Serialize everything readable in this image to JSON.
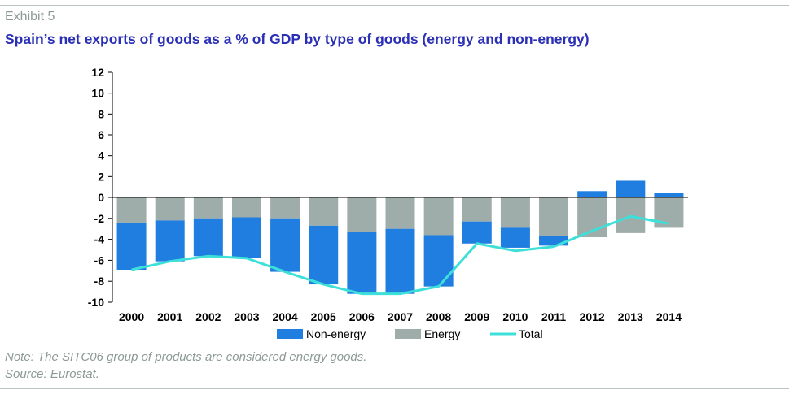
{
  "header": {
    "exhibit": "Exhibit 5",
    "title": "Spain’s net exports of goods as a % of GDP by type of goods (energy and non-energy)"
  },
  "footer": {
    "note": "Note: The SITC06 group of products are considered energy goods.",
    "source": "Source: Eurostat."
  },
  "colors": {
    "non_energy": "#1f7ee0",
    "energy": "#9fadaa",
    "total": "#3de0d8",
    "title": "#2a2fb5",
    "muted": "#8c9a96"
  },
  "chart_data": {
    "type": "bar",
    "stacked": true,
    "categories": [
      "2000",
      "2001",
      "2002",
      "2003",
      "2004",
      "2005",
      "2006",
      "2007",
      "2008",
      "2009",
      "2010",
      "2011",
      "2012",
      "2013",
      "2014"
    ],
    "series": [
      {
        "name": "Non-energy",
        "type": "bar",
        "values": [
          -4.5,
          -3.9,
          -3.6,
          -3.9,
          -5.1,
          -5.6,
          -5.9,
          -6.2,
          -4.9,
          -2.1,
          -1.9,
          -0.9,
          0.6,
          1.6,
          0.4
        ]
      },
      {
        "name": "Energy",
        "type": "bar",
        "values": [
          -2.4,
          -2.2,
          -2.0,
          -1.9,
          -2.0,
          -2.7,
          -3.3,
          -3.0,
          -3.6,
          -2.3,
          -2.9,
          -3.7,
          -3.8,
          -3.4,
          -2.9
        ]
      },
      {
        "name": "Total",
        "type": "line",
        "values": [
          -6.9,
          -6.1,
          -5.6,
          -5.8,
          -7.1,
          -8.3,
          -9.2,
          -9.2,
          -8.5,
          -4.4,
          -5.1,
          -4.7,
          -3.2,
          -1.8,
          -2.5
        ]
      }
    ],
    "ylim": [
      -10,
      12
    ],
    "yticks": [
      "12",
      "10",
      "8",
      "6",
      "4",
      "2",
      "0",
      "-2",
      "-4",
      "-6",
      "-8",
      "-10"
    ],
    "legend": {
      "position": "bottom",
      "labels": [
        "Non-energy",
        "Energy",
        "Total"
      ]
    },
    "grid": false
  }
}
